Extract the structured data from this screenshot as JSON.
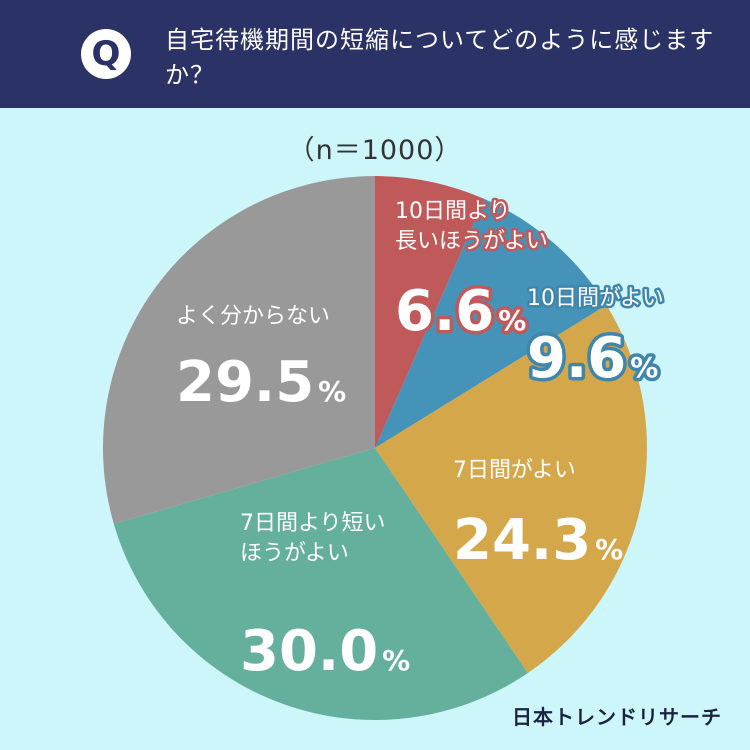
{
  "header": {
    "badge": "Q",
    "question": "自宅待機期間の短縮についてどのように感じますか？"
  },
  "sample_note": "（n＝1000）",
  "brand": "日本トレンドリサーチ",
  "colors": {
    "header_bg": "#2b3266",
    "page_bg": "#cdf6fb"
  },
  "chart_data": {
    "type": "pie",
    "n": 1000,
    "unit": "%",
    "slices": [
      {
        "name": "10日間より長いほうがよい",
        "lines": [
          "10日間より",
          "長いほうがよい"
        ],
        "value": 6.6,
        "color": "#c05a5a",
        "outline": "#c05a5a"
      },
      {
        "name": "10日間がよい",
        "lines": [
          "10日間がよい"
        ],
        "value": 9.6,
        "color": "#4593b8",
        "outline": "#3f86ad"
      },
      {
        "name": "7日間がよい",
        "lines": [
          "7日間がよい"
        ],
        "value": 24.3,
        "color": "#d4a74a",
        "outline": ""
      },
      {
        "name": "7日間より短いほうがよい",
        "lines": [
          "7日間より短い",
          "ほうがよい"
        ],
        "value": 30.0,
        "color": "#65b09d",
        "outline": ""
      },
      {
        "name": "よく分からない",
        "lines": [
          "よく分からない"
        ],
        "value": 29.5,
        "color": "#999999",
        "outline": ""
      }
    ]
  }
}
